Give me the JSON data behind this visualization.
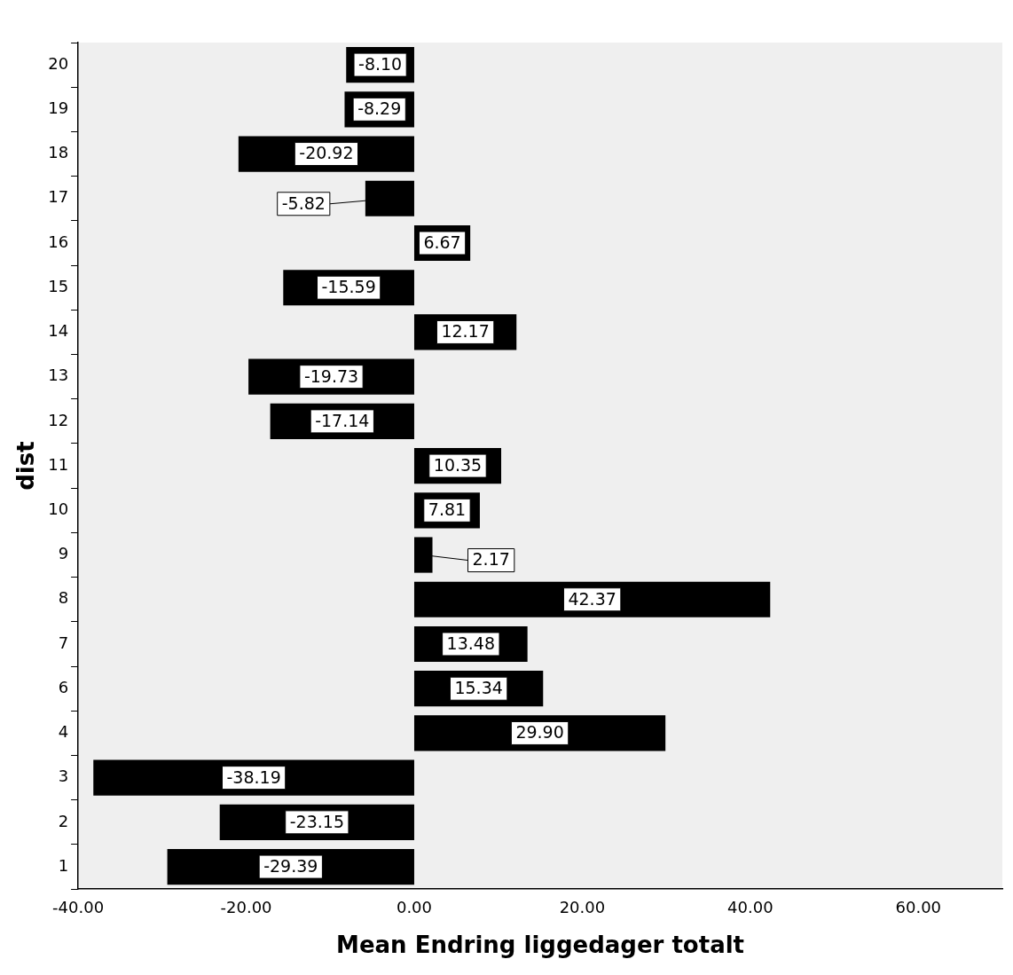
{
  "chart_data": {
    "type": "bar",
    "orientation": "horizontal",
    "xlabel": "Mean Endring liggedager totalt",
    "ylabel": "dist",
    "categories": [
      "20",
      "19",
      "18",
      "17",
      "16",
      "15",
      "14",
      "13",
      "12",
      "11",
      "10",
      "9",
      "8",
      "7",
      "6",
      "4",
      "3",
      "2",
      "1"
    ],
    "values": [
      -8.1,
      -8.29,
      -20.92,
      -5.82,
      6.67,
      -15.59,
      12.17,
      -19.73,
      -17.14,
      10.35,
      7.81,
      2.17,
      42.37,
      13.48,
      15.34,
      29.9,
      -38.19,
      -23.15,
      -29.39
    ],
    "value_labels": [
      "-8.10",
      "-8.29",
      "-20.92",
      "-5.82",
      "6.67",
      "-15.59",
      "12.17",
      "-19.73",
      "-17.14",
      "10.35",
      "7.81",
      "2.17",
      "42.37",
      "13.48",
      "15.34",
      "29.90",
      "-38.19",
      "-23.15",
      "-29.39"
    ],
    "color": "#000000",
    "xlim": [
      -40,
      70
    ],
    "xticks": [
      {
        "value": -40,
        "label": "-40.00"
      },
      {
        "value": -20,
        "label": "-20.00"
      },
      {
        "value": 0,
        "label": "0.00"
      },
      {
        "value": 20,
        "label": "20.00"
      },
      {
        "value": 40,
        "label": "40.00"
      },
      {
        "value": 60,
        "label": "60.00"
      }
    ],
    "grid": false,
    "legend": false
  }
}
